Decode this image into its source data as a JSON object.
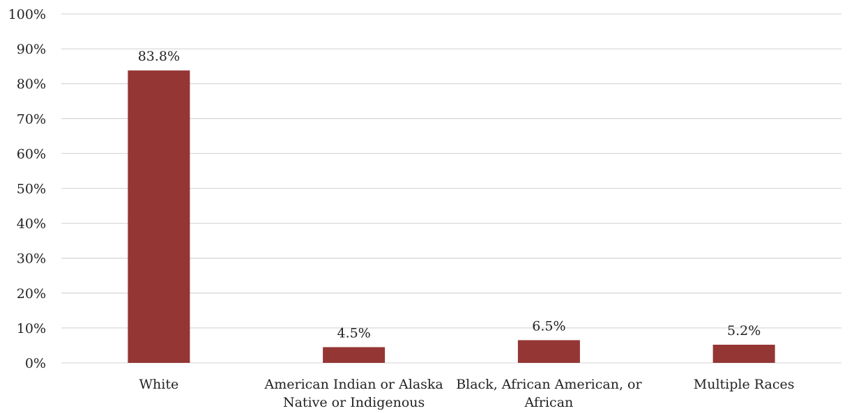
{
  "chart_data": {
    "type": "bar",
    "title": "",
    "xlabel": "",
    "ylabel": "",
    "categories": [
      [
        "White"
      ],
      [
        "American Indian or Alaska",
        "Native or Indigenous"
      ],
      [
        "Black, African American, or",
        "African"
      ],
      [
        "Multiple Races"
      ]
    ],
    "values": [
      83.8,
      4.5,
      6.5,
      5.2
    ],
    "data_labels": [
      "83.8%",
      "4.5%",
      "6.5%",
      "5.2%"
    ],
    "ylim": [
      0,
      100
    ],
    "yticks": [
      0,
      10,
      20,
      30,
      40,
      50,
      60,
      70,
      80,
      90,
      100
    ],
    "ytick_labels": [
      "0%",
      "10%",
      "20%",
      "30%",
      "40%",
      "50%",
      "60%",
      "70%",
      "80%",
      "90%",
      "100%"
    ],
    "grid": true,
    "legend": "none",
    "bar_color": "#943634"
  }
}
